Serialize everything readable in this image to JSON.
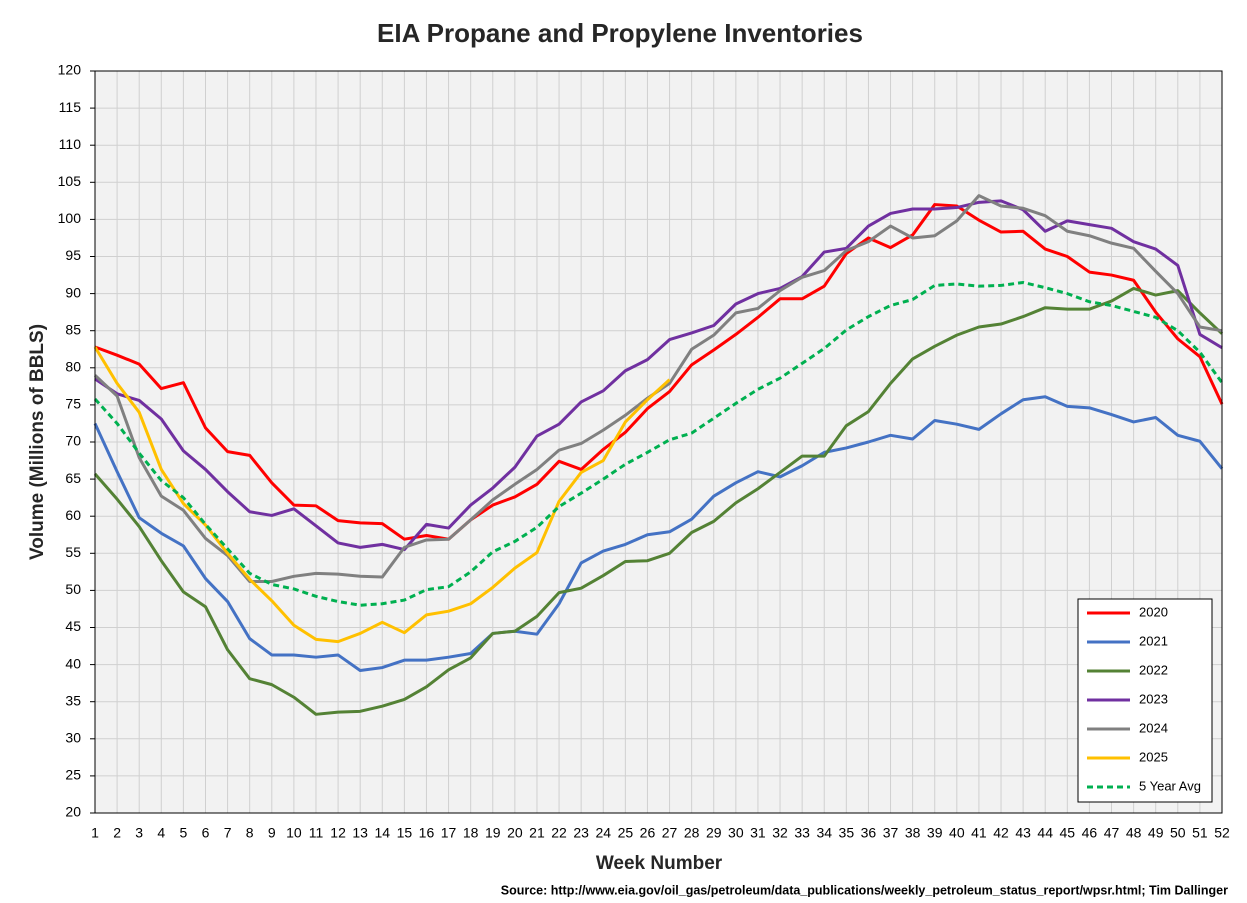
{
  "chart_data": {
    "type": "line",
    "title": "EIA Propane and Propylene Inventories",
    "x_label": "Week Number",
    "y_label": "Volume (Millions of BBLS)",
    "source": "Source: http://www.eia.gov/oil_gas/petroleum/data_publications/weekly_petroleum_status_report/wpsr.html; Tim Dallinger",
    "x": [
      1,
      2,
      3,
      4,
      5,
      6,
      7,
      8,
      9,
      10,
      11,
      12,
      13,
      14,
      15,
      16,
      17,
      18,
      19,
      20,
      21,
      22,
      23,
      24,
      25,
      26,
      27,
      28,
      29,
      30,
      31,
      32,
      33,
      34,
      35,
      36,
      37,
      38,
      39,
      40,
      41,
      42,
      43,
      44,
      45,
      46,
      47,
      48,
      49,
      50,
      51,
      52
    ],
    "xlim": [
      1,
      52
    ],
    "ylim": [
      20,
      120
    ],
    "yticks": [
      20,
      25,
      30,
      35,
      40,
      45,
      50,
      55,
      60,
      65,
      70,
      75,
      80,
      85,
      90,
      95,
      100,
      105,
      110,
      115,
      120
    ],
    "grid": true,
    "legend": "lower right",
    "series": [
      {
        "name": "2020",
        "color": "#ff0000",
        "values": [
          82.8,
          81.7,
          80.5,
          77.2,
          78,
          71.9,
          68.7,
          68.2,
          64.5,
          61.5,
          61.4,
          59.4,
          59.1,
          59,
          56.9,
          57.4,
          56.9,
          59.5,
          61.5,
          62.6,
          64.3,
          67.4,
          66.3,
          69,
          71.3,
          74.5,
          76.8,
          80.4,
          82.4,
          84.5,
          86.8,
          89.3,
          89.3,
          91,
          95.4,
          97.5,
          96.2,
          97.9,
          102,
          101.8,
          99.9,
          98.3,
          98.4,
          96,
          95,
          92.9,
          92.5,
          91.8,
          87.5,
          83.9,
          81.5,
          75.1
        ]
      },
      {
        "name": "2021",
        "color": "#4472c4",
        "values": [
          72.5,
          66,
          59.8,
          57.7,
          56,
          51.6,
          48.5,
          43.5,
          41.3,
          41.3,
          41,
          41.3,
          39.2,
          39.6,
          40.6,
          40.6,
          41,
          41.5,
          44.2,
          44.5,
          44.1,
          48.2,
          53.7,
          55.3,
          56.2,
          57.5,
          57.9,
          59.6,
          62.7,
          64.5,
          66,
          65.3,
          66.8,
          68.6,
          69.2,
          70,
          70.9,
          70.4,
          72.9,
          72.4,
          71.7,
          73.8,
          75.7,
          76.1,
          74.8,
          74.6,
          73.7,
          72.7,
          73.3,
          70.9,
          70.1,
          66.4
        ]
      },
      {
        "name": "2022",
        "color": "#548235",
        "values": [
          65.7,
          62.3,
          58.6,
          54,
          49.8,
          47.8,
          42,
          38.1,
          37.3,
          35.6,
          33.3,
          33.6,
          33.7,
          34.4,
          35.3,
          37,
          39.3,
          40.9,
          44.2,
          44.5,
          46.5,
          49.7,
          50.3,
          52,
          53.9,
          54,
          55,
          57.8,
          59.3,
          61.8,
          63.7,
          65.9,
          68.1,
          68.1,
          72.2,
          74.1,
          77.9,
          81.2,
          82.9,
          84.4,
          85.5,
          85.9,
          86.9,
          88.1,
          87.9,
          87.9,
          89,
          90.7,
          89.8,
          90.4,
          87.4,
          84.6
        ]
      },
      {
        "name": "2023",
        "color": "#7030a0",
        "values": [
          78.5,
          76.5,
          75.6,
          73.1,
          68.8,
          66.3,
          63.3,
          60.6,
          60.1,
          61,
          58.7,
          56.4,
          55.8,
          56.2,
          55.5,
          58.9,
          58.4,
          61.5,
          63.8,
          66.6,
          70.8,
          72.4,
          75.4,
          76.9,
          79.6,
          81.1,
          83.8,
          84.7,
          85.7,
          88.6,
          90,
          90.7,
          92.3,
          95.6,
          96.1,
          99.1,
          100.8,
          101.4,
          101.4,
          101.6,
          102.3,
          102.5,
          101.3,
          98.4,
          99.8,
          99.3,
          98.8,
          97,
          96,
          93.8,
          84.5,
          82.7
        ]
      },
      {
        "name": "2024",
        "color": "#808080",
        "values": [
          79,
          76.2,
          67.9,
          62.7,
          60.8,
          57,
          54.7,
          51.2,
          51.2,
          51.9,
          52.3,
          52.2,
          51.9,
          51.8,
          55.8,
          56.8,
          56.9,
          59.5,
          62.2,
          64.3,
          66.3,
          68.9,
          69.8,
          71.6,
          73.6,
          75.9,
          77.9,
          82.5,
          84.4,
          87.4,
          88,
          90.4,
          92.2,
          93.1,
          95.8,
          97,
          99.1,
          97.5,
          97.8,
          99.8,
          103.2,
          101.8,
          101.5,
          100.5,
          98.4,
          97.8,
          96.8,
          96.1,
          93,
          90,
          85.5,
          85
        ]
      },
      {
        "name": "2025",
        "color": "#ffc000",
        "values": [
          82.8,
          77.9,
          74,
          66.3,
          61.7,
          58.8,
          55,
          51.5,
          48.6,
          45.3,
          43.4,
          43.1,
          44.2,
          45.7,
          44.3,
          46.7,
          47.2,
          48.2,
          50.4,
          53,
          55.1,
          62,
          65.9,
          67.5,
          72.7,
          75.7,
          78.4,
          null,
          null,
          null,
          null,
          null,
          null,
          null,
          null,
          null,
          null,
          null,
          null,
          null,
          null,
          null,
          null,
          null,
          null,
          null,
          null,
          null,
          null,
          null,
          null,
          null
        ]
      },
      {
        "name": "5 Year Avg",
        "color": "#00b050",
        "dashed": true,
        "values": [
          75.8,
          72.5,
          68.5,
          64.8,
          62.5,
          58.9,
          55.6,
          52.3,
          50.8,
          50.2,
          49.2,
          48.5,
          48,
          48.2,
          48.7,
          50.1,
          50.5,
          52.5,
          55.2,
          56.6,
          58.5,
          61.3,
          63.1,
          65,
          67,
          68.6,
          70.3,
          71.2,
          73.2,
          75.2,
          77.1,
          78.6,
          80.6,
          82.6,
          85.1,
          86.9,
          88.4,
          89.2,
          91.1,
          91.3,
          91,
          91.1,
          91.5,
          90.8,
          90,
          88.9,
          88.4,
          87.6,
          86.8,
          85,
          82.1,
          78
        ]
      }
    ]
  }
}
